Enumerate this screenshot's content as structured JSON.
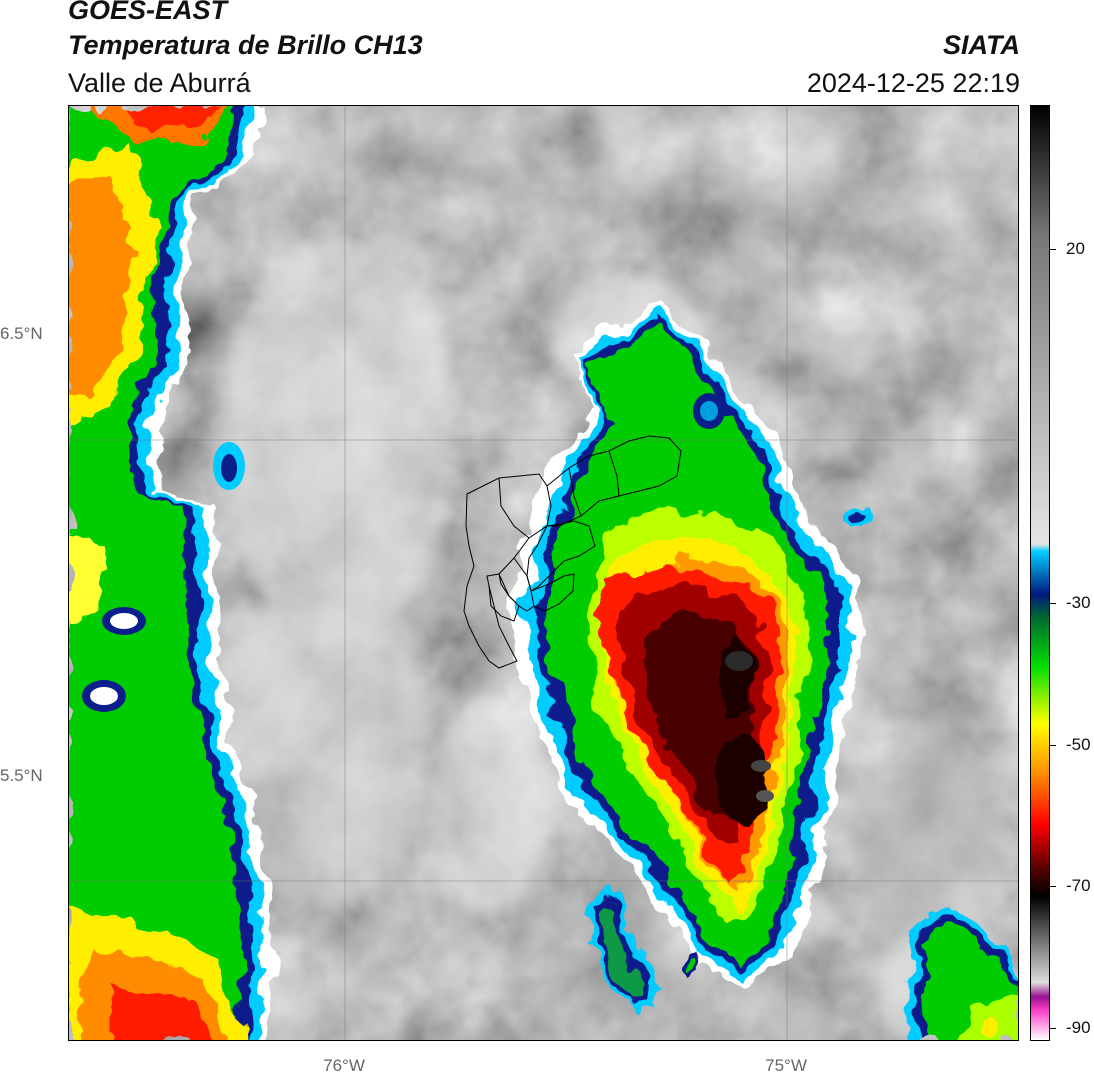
{
  "header": {
    "title": "GOES-EAST",
    "subtitle": "Temperatura de Brillo CH13",
    "region": "Valle de Aburrá",
    "brand": "SIATA",
    "datetime": "2024-12-25 22:19"
  },
  "map": {
    "lat_labels": [
      "6.5°N",
      "5.5°N"
    ],
    "lon_labels": [
      "76°W",
      "75°W"
    ]
  },
  "colorbar": {
    "ticks": [
      "20",
      "-30",
      "-50",
      "-70",
      "-90"
    ],
    "tick_values": [
      20,
      -30,
      -50,
      -70,
      -90
    ],
    "range": [
      -92,
      38
    ],
    "palette_stops": [
      [
        "#ffffff",
        -92
      ],
      [
        "#ff44cc",
        -88
      ],
      [
        "#9a1090",
        -86
      ],
      [
        "#dddddd",
        -84
      ],
      [
        "#000000",
        -72
      ],
      [
        "#5a0000",
        -68
      ],
      [
        "#ff0000",
        -62
      ],
      [
        "#ff8c00",
        -55
      ],
      [
        "#ffff00",
        -48
      ],
      [
        "#00dd00",
        -40
      ],
      [
        "#006633",
        -33
      ],
      [
        "#001a80",
        -30
      ],
      [
        "#00ccff",
        -24
      ],
      [
        "#e5e5e5",
        -23
      ],
      [
        "#777777",
        20
      ],
      [
        "#000000",
        38
      ]
    ]
  }
}
